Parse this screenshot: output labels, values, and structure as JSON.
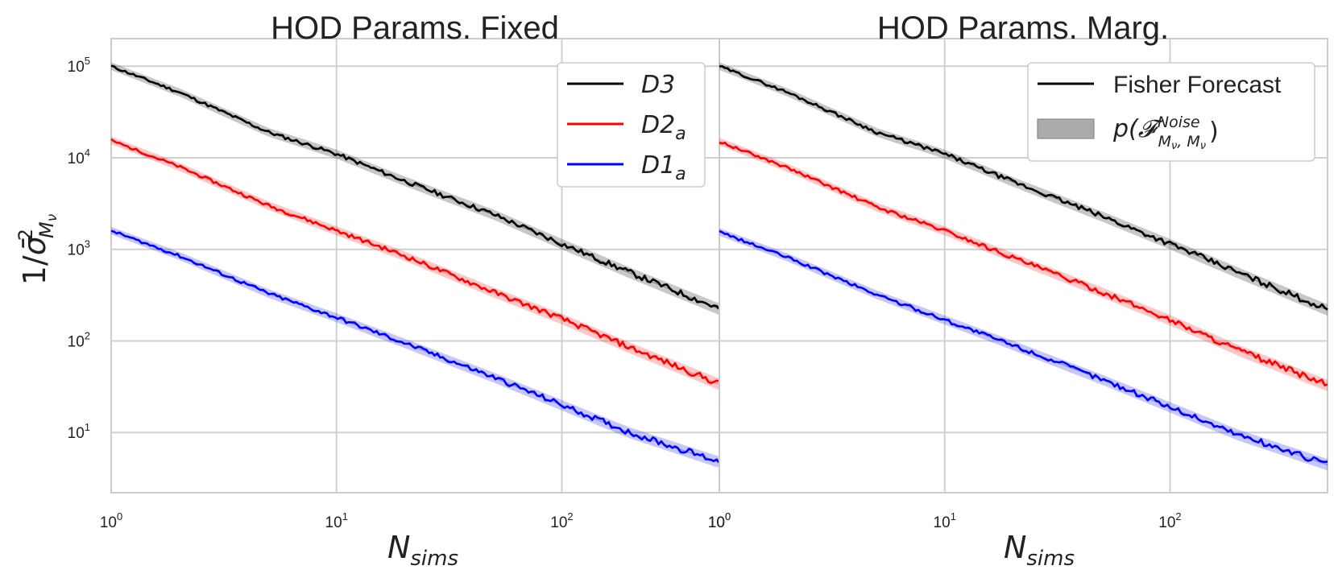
{
  "chart_data": [
    {
      "type": "line",
      "title": "HOD Params. Fixed",
      "xlabel_base": "N",
      "xlabel_sub": "sims",
      "ylabel_prefix": "1/",
      "ylabel_sym": "σ̄",
      "ylabel_sup": "2",
      "ylabel_sub": "M",
      "ylabel_subsub": "ν",
      "xscale": "log",
      "yscale": "log",
      "xlim": [
        1,
        500
      ],
      "ylim": [
        2.2,
        200000
      ],
      "x_ticks": [
        {
          "base": "10",
          "exp": "0"
        },
        {
          "base": "10",
          "exp": "1"
        },
        {
          "base": "10",
          "exp": "2"
        },
        {
          "base": "10",
          "exp": "0"
        }
      ],
      "y_ticks": [
        {
          "base": "10",
          "exp": "1"
        },
        {
          "base": "10",
          "exp": "2"
        },
        {
          "base": "10",
          "exp": "3"
        },
        {
          "base": "10",
          "exp": "4"
        },
        {
          "base": "10",
          "exp": "5"
        }
      ],
      "grid": true,
      "legend_position": "top-right",
      "legend": [
        {
          "base": "D3",
          "sub": "",
          "color": "#000000"
        },
        {
          "base": "D2",
          "sub": "a",
          "color": "#ff0000"
        },
        {
          "base": "D1",
          "sub": "a",
          "color": "#0000ff"
        }
      ],
      "series": [
        {
          "name": "D3",
          "color": "#000000",
          "x": [
            1,
            2,
            5,
            10,
            20,
            50,
            100,
            200,
            500
          ],
          "y": [
            100000,
            52000,
            19000,
            11000,
            5600,
            2400,
            1150,
            560,
            225
          ]
        },
        {
          "name": "D2a",
          "color": "#ff0000",
          "x": [
            1,
            2,
            5,
            10,
            20,
            50,
            100,
            200,
            500
          ],
          "y": [
            15500,
            8000,
            3000,
            1600,
            850,
            340,
            175,
            85,
            34
          ]
        },
        {
          "name": "D1a",
          "color": "#0000ff",
          "x": [
            1,
            2,
            5,
            10,
            20,
            50,
            100,
            200,
            500
          ],
          "y": [
            1600,
            850,
            330,
            180,
            95,
            40,
            20,
            10,
            4.8
          ]
        }
      ]
    },
    {
      "type": "line",
      "title": "HOD Params. Marg.",
      "xlabel_base": "N",
      "xlabel_sub": "sims",
      "xscale": "log",
      "yscale": "log",
      "xlim": [
        1,
        500
      ],
      "ylim": [
        2.2,
        200000
      ],
      "x_ticks": [
        {
          "base": "10",
          "exp": "0"
        },
        {
          "base": "10",
          "exp": "1"
        },
        {
          "base": "10",
          "exp": "2"
        }
      ],
      "grid": true,
      "legend_position": "top-right",
      "legend": [
        {
          "label": "Fisher Forecast",
          "kind": "line",
          "color": "#000000"
        },
        {
          "label_base": "p(",
          "script": "𝓕",
          "sup": "Noise",
          "sub": "M",
          "subsub": "ν",
          "sub2": ", M",
          "subsub2": "ν",
          "close": ")",
          "kind": "band",
          "color": "#aaaaaa"
        }
      ],
      "series": [
        {
          "name": "D3",
          "color": "#000000",
          "x": [
            1,
            2,
            5,
            10,
            20,
            50,
            100,
            200,
            500
          ],
          "y": [
            100000,
            52000,
            19000,
            11000,
            5500,
            2300,
            1150,
            560,
            220
          ]
        },
        {
          "name": "D2a",
          "color": "#ff0000",
          "x": [
            1,
            2,
            5,
            10,
            20,
            50,
            100,
            200,
            500
          ],
          "y": [
            15000,
            7800,
            2900,
            1600,
            820,
            340,
            170,
            80,
            33
          ]
        },
        {
          "name": "D1a",
          "color": "#0000ff",
          "x": [
            1,
            2,
            5,
            10,
            20,
            50,
            100,
            200,
            500
          ],
          "y": [
            1550,
            820,
            320,
            170,
            90,
            38,
            19,
            9.5,
            4.5
          ]
        }
      ]
    }
  ]
}
